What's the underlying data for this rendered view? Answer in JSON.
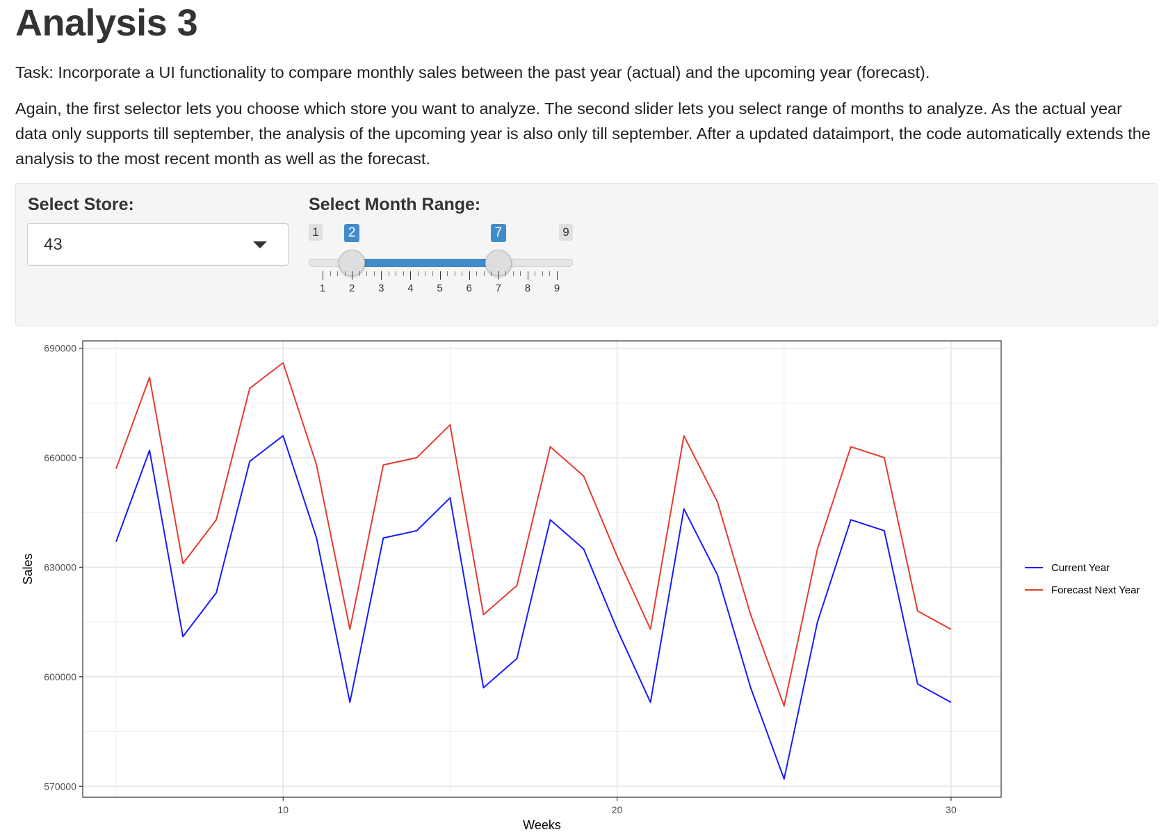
{
  "page": {
    "title": "Analysis 3",
    "task": "Task: Incorporate a UI functionality to compare monthly sales between the past year (actual) and the upcoming year (forecast).",
    "description": "Again, the first selector lets you choose which store you want to analyze. The second slider lets you select range of months to analyze. As the actual year data only supports till september, the analysis of the upcoming year is also only till september. After a updated dataimport, the code automatically extends the analysis to the most recent month as well as the forecast."
  },
  "controls": {
    "store_label": "Select Store:",
    "store_value": "43",
    "month_label": "Select Month Range:",
    "slider": {
      "min": 1,
      "max": 9,
      "from": 2,
      "to": 7,
      "min_label": "1",
      "max_label": "9",
      "from_label": "2",
      "to_label": "7",
      "tick_labels": [
        "1",
        "2",
        "3",
        "4",
        "5",
        "6",
        "7",
        "8",
        "9"
      ],
      "accent_color": "#428bca"
    }
  },
  "chart_data": {
    "type": "line",
    "xlabel": "Weeks",
    "ylabel": "Sales",
    "xlim": [
      4,
      31.5
    ],
    "ylim": [
      567000,
      692000
    ],
    "x_ticks": [
      10,
      20,
      30
    ],
    "y_ticks": [
      570000,
      600000,
      630000,
      660000,
      690000
    ],
    "grid": true,
    "legend_position": "right",
    "x": [
      5,
      6,
      7,
      8,
      9,
      10,
      11,
      12,
      13,
      14,
      15,
      16,
      17,
      18,
      19,
      20,
      21,
      22,
      23,
      24,
      25,
      26,
      27,
      28,
      29,
      30
    ],
    "series": [
      {
        "name": "Current Year",
        "color": "#1a1aff",
        "values": [
          637000,
          662000,
          611000,
          623000,
          659000,
          666000,
          638000,
          593000,
          638000,
          640000,
          649000,
          597000,
          605000,
          643000,
          635000,
          613000,
          593000,
          646000,
          628000,
          597000,
          572000,
          615000,
          643000,
          640000,
          598000,
          593000
        ]
      },
      {
        "name": "Forecast Next Year",
        "color": "#e63b2e",
        "values": [
          657000,
          682000,
          631000,
          643000,
          679000,
          686000,
          658000,
          613000,
          658000,
          660000,
          669000,
          617000,
          625000,
          663000,
          655000,
          633000,
          613000,
          666000,
          648000,
          617000,
          592000,
          635000,
          663000,
          660000,
          618000,
          613000
        ]
      }
    ]
  }
}
